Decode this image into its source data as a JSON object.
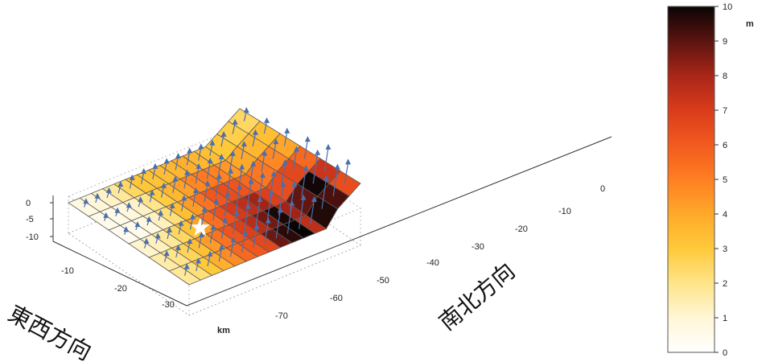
{
  "chart_data": {
    "type": "surface",
    "title": "",
    "z_axis": {
      "ticks": [
        "0",
        "-5",
        "-10"
      ]
    },
    "ew_axis": {
      "label": "東西方向",
      "ticks": [
        "-10",
        "-20",
        "-30"
      ]
    },
    "ns_axis": {
      "label": "南北方向",
      "ticks": [
        "0",
        "-10",
        "-20",
        "-30",
        "-40",
        "-50",
        "-60",
        "-70"
      ]
    },
    "unit_label": "km",
    "colorbar": {
      "unit": "m",
      "min": 0,
      "max": 10,
      "ticks": [
        "0",
        "1",
        "2",
        "3",
        "4",
        "5",
        "6",
        "7",
        "8",
        "9",
        "10"
      ],
      "colors": [
        "#ffffff",
        "#fff6d6",
        "#ffe48a",
        "#ffc93a",
        "#ffa92a",
        "#ff7e22",
        "#f25a1e",
        "#d93c1c",
        "#a92618",
        "#5a1410",
        "#0a0505"
      ]
    },
    "slip_grid": {
      "strike_rows": 15,
      "dip_cols": 6,
      "values": [
        [
          0.7,
          0.5,
          0.4,
          1.1,
          1.6,
          1.8
        ],
        [
          0.9,
          0.6,
          0.5,
          1.3,
          2.0,
          2.2
        ],
        [
          1.2,
          0.8,
          0.7,
          1.8,
          2.6,
          3.0
        ],
        [
          1.8,
          1.2,
          1.3,
          2.5,
          3.3,
          3.8
        ],
        [
          2.5,
          2.0,
          2.2,
          3.2,
          4.3,
          4.7
        ],
        [
          3.1,
          2.9,
          3.3,
          4.2,
          5.3,
          5.6
        ],
        [
          3.2,
          3.6,
          4.3,
          5.4,
          6.2,
          6.1
        ],
        [
          3.4,
          4.2,
          5.3,
          6.3,
          6.9,
          6.6
        ],
        [
          3.6,
          4.8,
          6.1,
          7.1,
          7.7,
          8.8
        ],
        [
          3.8,
          5.1,
          6.4,
          7.6,
          8.7,
          9.6
        ],
        [
          3.6,
          4.9,
          6.2,
          8.1,
          9.8,
          10.0
        ],
        [
          3.3,
          4.4,
          5.6,
          6.9,
          8.1,
          7.6
        ],
        [
          3.0,
          4.0,
          5.2,
          6.4,
          8.9,
          9.7
        ],
        [
          2.8,
          3.6,
          4.8,
          6.6,
          9.9,
          9.2
        ],
        [
          2.5,
          3.3,
          4.1,
          5.6,
          7.3,
          6.4
        ]
      ]
    },
    "epicenter": {
      "strike_index": 5.2,
      "dip_index": 3.6
    }
  }
}
